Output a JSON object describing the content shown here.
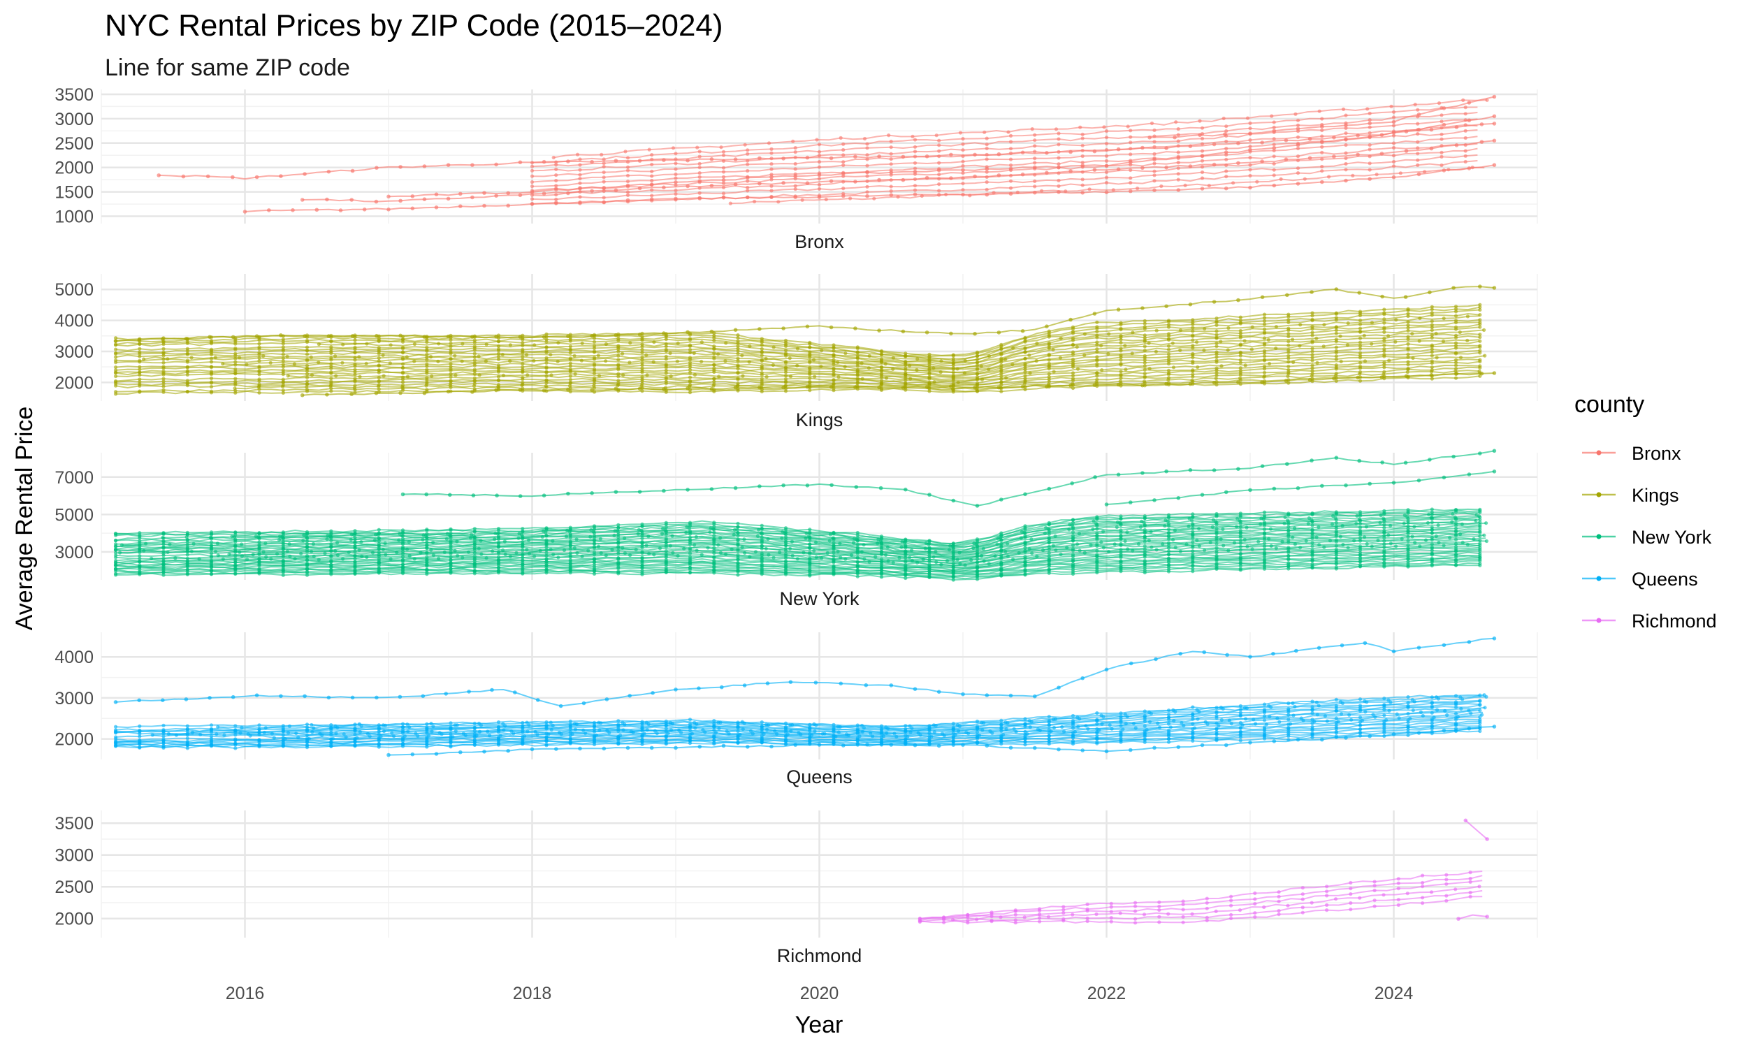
{
  "chart_data": {
    "type": "line",
    "title": "NYC Rental Prices by ZIP Code (2015–2024)",
    "subtitle": "Line for same ZIP code",
    "xlabel": "Year",
    "ylabel": "Average Rental Price",
    "xlim": [
      2015.0,
      2025.0
    ],
    "x_ticks": [
      2016,
      2018,
      2020,
      2022,
      2024
    ],
    "grid": true,
    "legend": {
      "title": "county",
      "placement": "right",
      "entries": [
        "Bronx",
        "Kings",
        "New York",
        "Queens",
        "Richmond"
      ]
    },
    "facet_by": "county",
    "facets": [
      {
        "name": "Bronx",
        "color": "#F8766D",
        "ylim": [
          850,
          3600
        ],
        "y_ticks": [
          1000,
          1500,
          2000,
          2500,
          3000,
          3500
        ],
        "bundle": {
          "start": 2018.0,
          "lower": [
            1150,
            1350,
            1600,
            2000
          ],
          "upper": [
            2200,
            2600,
            2900,
            3400
          ],
          "lines": 12
        },
        "series": [
          {
            "x": [
              2015.4,
              2016.0,
              2017.0,
              2018.0,
              2019.0,
              2020.0,
              2021.0,
              2022.0,
              2023.0,
              2024.0,
              2024.7
            ],
            "y": [
              1850,
              1780,
              2000,
              2100,
              2150,
              2200,
              2250,
              2350,
              2500,
              2700,
              2900
            ]
          },
          {
            "x": [
              2016.0,
              2017.0,
              2018.0,
              2019.0,
              2020.0,
              2021.0,
              2022.0,
              2023.0,
              2024.0,
              2024.7
            ],
            "y": [
              1100,
              1150,
              1250,
              1350,
              1400,
              1450,
              1500,
              1600,
              1800,
              2050
            ]
          },
          {
            "x": [
              2016.4,
              2017.0,
              2018.0,
              2019.0,
              2020.0,
              2021.0,
              2022.0,
              2023.0,
              2024.0,
              2024.7
            ],
            "y": [
              1350,
              1300,
              1450,
              1600,
              1700,
              1800,
              1950,
              2100,
              2300,
              2550
            ]
          },
          {
            "x": [
              2017.0,
              2018.0,
              2019.0,
              2020.0,
              2021.0,
              2022.0,
              2023.0,
              2024.0,
              2024.7
            ],
            "y": [
              1400,
              1500,
              1700,
              1850,
              1950,
              2050,
              2350,
              2700,
              3050
            ]
          },
          {
            "x": [
              2022.3,
              2023.0,
              2024.0,
              2024.7
            ],
            "y": [
              2600,
              2700,
              2950,
              3450
            ]
          }
        ]
      },
      {
        "name": "Kings",
        "color": "#A3A500",
        "ylim": [
          1400,
          5500
        ],
        "y_ticks": [
          2000,
          3000,
          4000,
          5000
        ],
        "bundle": {
          "start": 2015.1,
          "lower": [
            1650,
            1700,
            1750,
            1700,
            1800,
            1850,
            2000,
            2200
          ],
          "upper": [
            3400,
            3500,
            3500,
            3600,
            3000,
            3900,
            4200,
            4500
          ],
          "lines": 26
        },
        "series": [
          {
            "x": [
              2015.1,
              2016.0,
              2017.0,
              2018.0,
              2019.0,
              2020.0,
              2021.0,
              2021.5,
              2022.0,
              2023.0,
              2023.6,
              2024.0,
              2024.5,
              2024.7
            ],
            "y": [
              3350,
              3500,
              3500,
              3450,
              3600,
              3800,
              3550,
              3700,
              4300,
              4700,
              5000,
              4700,
              5100,
              5050
            ]
          },
          {
            "x": [
              2016.4,
              2017.0,
              2018.0,
              2019.0,
              2020.0,
              2021.0,
              2022.0,
              2023.0,
              2024.0,
              2024.7
            ],
            "y": [
              1600,
              1650,
              1750,
              1800,
              1850,
              1850,
              1900,
              2000,
              2200,
              2300
            ]
          }
        ]
      },
      {
        "name": "New York",
        "color": "#00BF7D",
        "ylim": [
          1500,
          8300
        ],
        "y_ticks": [
          3000,
          5000,
          7000
        ],
        "bundle": {
          "start": 2015.1,
          "lower": [
            1800,
            1800,
            1850,
            1850,
            1700,
            1900,
            2100,
            2300
          ],
          "upper": [
            4000,
            4100,
            4200,
            4600,
            3800,
            4900,
            5100,
            5300
          ],
          "lines": 34
        },
        "series": [
          {
            "x": [
              2017.1,
              2018.0,
              2019.0,
              2020.0,
              2020.6,
              2021.1,
              2021.6,
              2022.0,
              2023.0,
              2023.6,
              2024.0,
              2024.5,
              2024.7
            ],
            "y": [
              6100,
              6000,
              6300,
              6600,
              6300,
              5450,
              6400,
              7100,
              7500,
              8000,
              7700,
              8200,
              8400
            ]
          },
          {
            "x": [
              2022.0,
              2023.0,
              2024.0,
              2024.7
            ],
            "y": [
              5500,
              6300,
              6700,
              7300
            ]
          }
        ]
      },
      {
        "name": "Queens",
        "color": "#00B0F6",
        "ylim": [
          1500,
          4600
        ],
        "y_ticks": [
          2000,
          3000,
          4000
        ],
        "bundle": {
          "start": 2015.1,
          "lower": [
            1800,
            1800,
            1850,
            1900,
            1850,
            1900,
            2000,
            2200
          ],
          "upper": [
            2300,
            2350,
            2400,
            2450,
            2300,
            2600,
            2900,
            3100
          ],
          "lines": 20
        },
        "series": [
          {
            "x": [
              2015.1,
              2016.0,
              2017.0,
              2017.8,
              2018.2,
              2019.0,
              2019.8,
              2020.5,
              2021.0,
              2021.5,
              2022.0,
              2022.6,
              2023.0,
              2023.8,
              2024.0,
              2024.7
            ],
            "y": [
              2900,
              3050,
              3000,
              3200,
              2800,
              3200,
              3400,
              3300,
              3100,
              3050,
              3700,
              4150,
              4000,
              4350,
              4150,
              4450
            ]
          },
          {
            "x": [
              2017.0,
              2018.0,
              2019.0,
              2020.0,
              2021.0,
              2022.0,
              2023.0,
              2024.0,
              2024.7
            ],
            "y": [
              1600,
              1750,
              1800,
              1850,
              1850,
              1700,
              1900,
              2100,
              2300
            ]
          }
        ]
      },
      {
        "name": "Richmond",
        "color": "#E76BF3",
        "ylim": [
          1700,
          3700
        ],
        "y_ticks": [
          2000,
          2500,
          3000,
          3500
        ],
        "bundle": {
          "start": 2020.7,
          "lower": [
            1950,
            1950,
            1950,
            2150,
            2350
          ],
          "upper": [
            2000,
            2200,
            2300,
            2550,
            2750
          ],
          "lines": 6
        },
        "series": [
          {
            "x": [
              2024.5,
              2024.65
            ],
            "y": [
              3550,
              3250
            ]
          },
          {
            "x": [
              2024.45,
              2024.55,
              2024.65
            ],
            "y": [
              1990,
              2050,
              2030
            ]
          }
        ]
      }
    ]
  }
}
